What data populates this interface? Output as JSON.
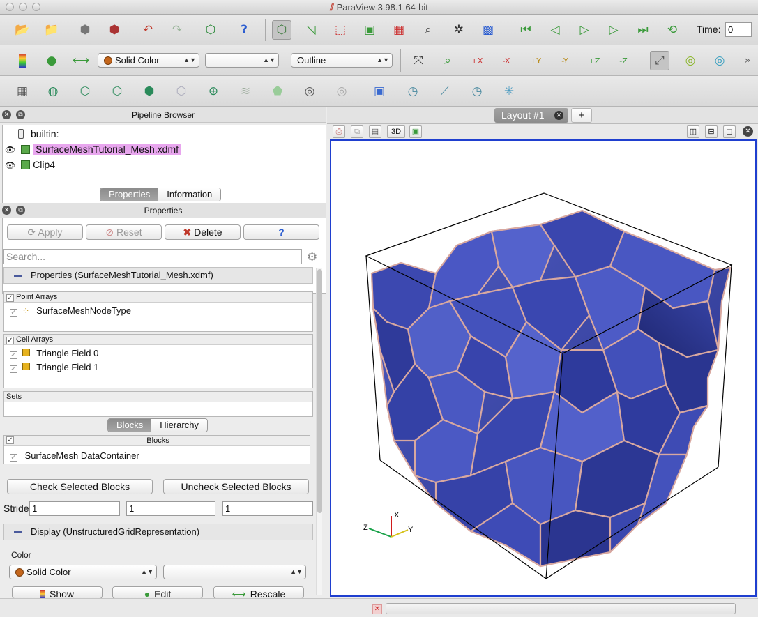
{
  "window": {
    "title": "ParaView 3.98.1 64-bit"
  },
  "colors": {
    "accent": "#1f3fcf",
    "selection": "#e8a6ee",
    "mesh_fill": "#3a47a8",
    "mesh_edge": "#d8a8a0"
  },
  "toolbar1": {
    "icons": [
      "open-icon",
      "open-folder-icon",
      "load-state-icon",
      "save-state-icon",
      "undo-icon",
      "redo-icon",
      "connect-icon",
      "help-icon",
      "camera-reset-icon",
      "select-cells-icon",
      "select-points-icon",
      "select-surface-icon",
      "select-frustum-icon",
      "zoom-select-icon",
      "pick-icon",
      "interact-icon",
      "first-frame-icon",
      "prev-frame-icon",
      "play-icon",
      "next-frame-icon",
      "last-frame-icon",
      "loop-icon"
    ],
    "time_label": "Time:",
    "time_value": "0"
  },
  "toolbar2": {
    "color_by": "Solid Color",
    "component": "",
    "representation": "Outline",
    "view_dirs": [
      "+X",
      "-X",
      "+Y",
      "-Y",
      "+Z",
      "-Z"
    ]
  },
  "toolbar3": {
    "filters": [
      "calculator",
      "contour",
      "clip",
      "slice",
      "threshold",
      "extract-subset",
      "glyph",
      "stream-tracer",
      "warp",
      "group",
      "extract-level",
      "plot-selection",
      "plot-over-line",
      "plot-data",
      "histogram",
      "clip-closed"
    ]
  },
  "pipeline": {
    "title": "Pipeline Browser",
    "items": [
      {
        "label": "builtin:"
      },
      {
        "label": "SurfaceMeshTutorial_Mesh.xdmf"
      },
      {
        "label": "Clip4"
      }
    ]
  },
  "tabs": {
    "properties": "Properties",
    "information": "Information"
  },
  "properties": {
    "title": "Properties",
    "apply": "Apply",
    "reset": "Reset",
    "delete": "Delete",
    "help": "?",
    "search_placeholder": "Search...",
    "section_header": "Properties (SurfaceMeshTutorial_Mesh.xdmf)",
    "point_arrays_label": "Point Arrays",
    "point_arrays": [
      "SurfaceMeshNodeType"
    ],
    "cell_arrays_label": "Cell Arrays",
    "cell_arrays": [
      "Triangle Field 0",
      "Triangle Field 1"
    ],
    "sets_label": "Sets",
    "blocks_tab": "Blocks",
    "hierarchy_tab": "Hierarchy",
    "blocks_header": "Blocks",
    "blocks": [
      "SurfaceMesh DataContainer"
    ],
    "check_selected": "Check Selected Blocks",
    "uncheck_selected": "Uncheck Selected Blocks",
    "stride_label": "Stride",
    "stride": [
      "1",
      "1",
      "1"
    ],
    "display_header": "Display (UnstructuredGridRepresentation)",
    "color_label": "Color",
    "color_value": "Solid Color",
    "color_component": "",
    "show_button": "Show",
    "edit_button": "Edit",
    "rescale_button": "Rescale"
  },
  "view": {
    "layout_tab": "Layout #1",
    "add_tab": "+",
    "mode_3d": "3D",
    "axes": {
      "x": "X",
      "y": "Y",
      "z": "Z"
    }
  }
}
